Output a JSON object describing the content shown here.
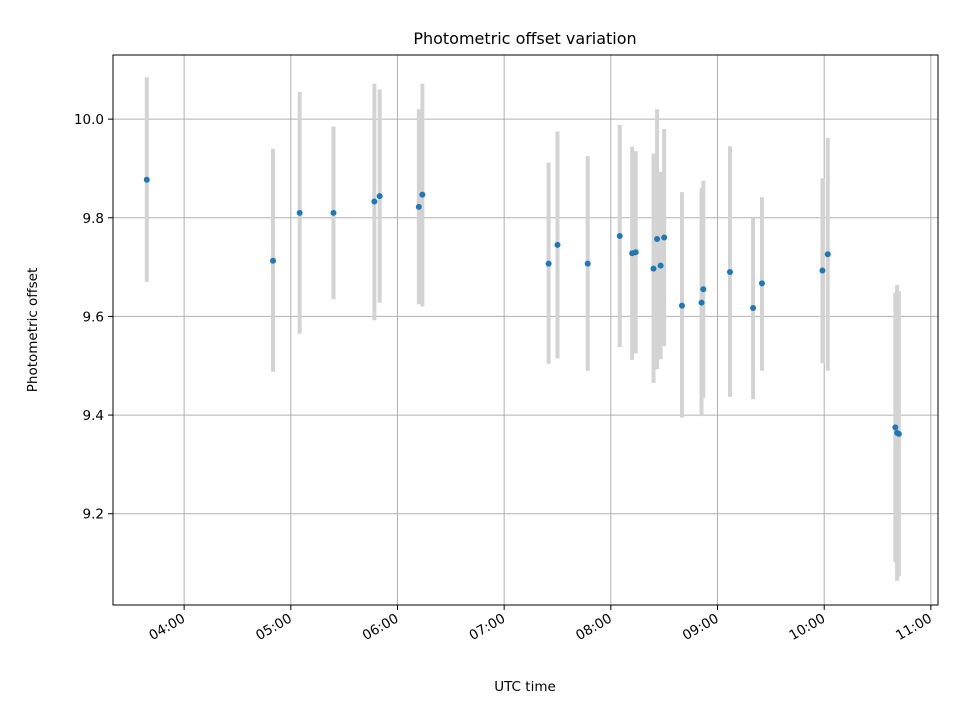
{
  "chart_data": {
    "type": "scatter",
    "title": "Photometric offset variation",
    "xlabel": "UTC time",
    "ylabel": "Photometric offset",
    "x_is_time": true,
    "xlim": [
      "03:20",
      "11:04"
    ],
    "ylim": [
      9.015,
      10.13
    ],
    "x_ticks": [
      "04:00",
      "05:00",
      "06:00",
      "07:00",
      "08:00",
      "09:00",
      "10:00",
      "11:00"
    ],
    "y_ticks": [
      9.2,
      9.4,
      9.6,
      9.8,
      10.0
    ],
    "grid": true,
    "legend": "none",
    "colors": {
      "marker": "#1f77b4",
      "errorbar": "#d3d3d3",
      "grid": "#b0b0b0"
    },
    "series": [
      {
        "points": [
          {
            "x": "03:39",
            "y": 9.877,
            "ylo": 9.67,
            "yhi": 10.085
          },
          {
            "x": "04:50",
            "y": 9.713,
            "ylo": 9.488,
            "yhi": 9.94
          },
          {
            "x": "05:05",
            "y": 9.81,
            "ylo": 9.565,
            "yhi": 10.055
          },
          {
            "x": "05:24",
            "y": 9.81,
            "ylo": 9.635,
            "yhi": 9.985
          },
          {
            "x": "05:47",
            "y": 9.833,
            "ylo": 9.592,
            "yhi": 10.072
          },
          {
            "x": "05:50",
            "y": 9.844,
            "ylo": 9.628,
            "yhi": 10.06
          },
          {
            "x": "06:12",
            "y": 9.822,
            "ylo": 9.625,
            "yhi": 10.02
          },
          {
            "x": "06:14",
            "y": 9.847,
            "ylo": 9.62,
            "yhi": 10.072
          },
          {
            "x": "07:25",
            "y": 9.707,
            "ylo": 9.504,
            "yhi": 9.912
          },
          {
            "x": "07:30",
            "y": 9.745,
            "ylo": 9.515,
            "yhi": 9.975
          },
          {
            "x": "07:47",
            "y": 9.707,
            "ylo": 9.49,
            "yhi": 9.925
          },
          {
            "x": "08:05",
            "y": 9.763,
            "ylo": 9.538,
            "yhi": 9.988
          },
          {
            "x": "08:12",
            "y": 9.728,
            "ylo": 9.512,
            "yhi": 9.944
          },
          {
            "x": "08:14",
            "y": 9.73,
            "ylo": 9.525,
            "yhi": 9.935
          },
          {
            "x": "08:24",
            "y": 9.697,
            "ylo": 9.465,
            "yhi": 9.93
          },
          {
            "x": "08:26",
            "y": 9.757,
            "ylo": 9.493,
            "yhi": 10.02
          },
          {
            "x": "08:28",
            "y": 9.703,
            "ylo": 9.513,
            "yhi": 9.893
          },
          {
            "x": "08:30",
            "y": 9.76,
            "ylo": 9.54,
            "yhi": 9.98
          },
          {
            "x": "08:40",
            "y": 9.622,
            "ylo": 9.395,
            "yhi": 9.852
          },
          {
            "x": "08:51",
            "y": 9.628,
            "ylo": 9.398,
            "yhi": 9.86
          },
          {
            "x": "08:52",
            "y": 9.655,
            "ylo": 9.435,
            "yhi": 9.875
          },
          {
            "x": "09:07",
            "y": 9.69,
            "ylo": 9.437,
            "yhi": 9.945
          },
          {
            "x": "09:20",
            "y": 9.617,
            "ylo": 9.432,
            "yhi": 9.8
          },
          {
            "x": "09:25",
            "y": 9.667,
            "ylo": 9.49,
            "yhi": 9.842
          },
          {
            "x": "09:59",
            "y": 9.693,
            "ylo": 9.505,
            "yhi": 9.88
          },
          {
            "x": "10:02",
            "y": 9.726,
            "ylo": 9.49,
            "yhi": 9.962
          },
          {
            "x": "10:40",
            "y": 9.375,
            "ylo": 9.102,
            "yhi": 9.648
          },
          {
            "x": "10:41",
            "y": 9.364,
            "ylo": 9.064,
            "yhi": 9.664
          },
          {
            "x": "10:42",
            "y": 9.362,
            "ylo": 9.073,
            "yhi": 9.651
          }
        ]
      }
    ]
  }
}
